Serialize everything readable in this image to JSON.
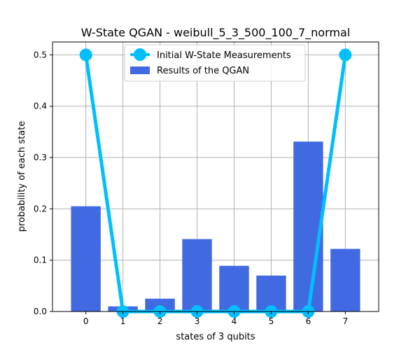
{
  "chart_data": {
    "type": "bar",
    "title": "W-State QGAN - weibull_5_3_500_100_7_normal",
    "xlabel": "states of 3 qubits",
    "ylabel": "probability of each state",
    "categories": [
      "0",
      "1",
      "2",
      "3",
      "4",
      "5",
      "6",
      "7"
    ],
    "x": [
      0,
      1,
      2,
      3,
      4,
      5,
      6,
      7
    ],
    "xlim": [
      -0.9,
      7.9
    ],
    "ylim": [
      0,
      0.525
    ],
    "yticks": [
      0.0,
      0.1,
      0.2,
      0.3,
      0.4,
      0.5
    ],
    "ytick_labels": [
      "0.0",
      "0.1",
      "0.2",
      "0.3",
      "0.4",
      "0.5"
    ],
    "grid": true,
    "legend_position": "top-center",
    "series": [
      {
        "name": "Results of the QGAN",
        "kind": "bar",
        "color": "#4169e1",
        "values": [
          0.205,
          0.01,
          0.025,
          0.141,
          0.089,
          0.07,
          0.331,
          0.122
        ]
      },
      {
        "name": "Initial W-State Measurements",
        "kind": "line",
        "color": "#00bfff",
        "values": [
          0.5,
          0,
          0,
          0,
          0,
          0,
          0,
          0.5
        ]
      }
    ]
  }
}
